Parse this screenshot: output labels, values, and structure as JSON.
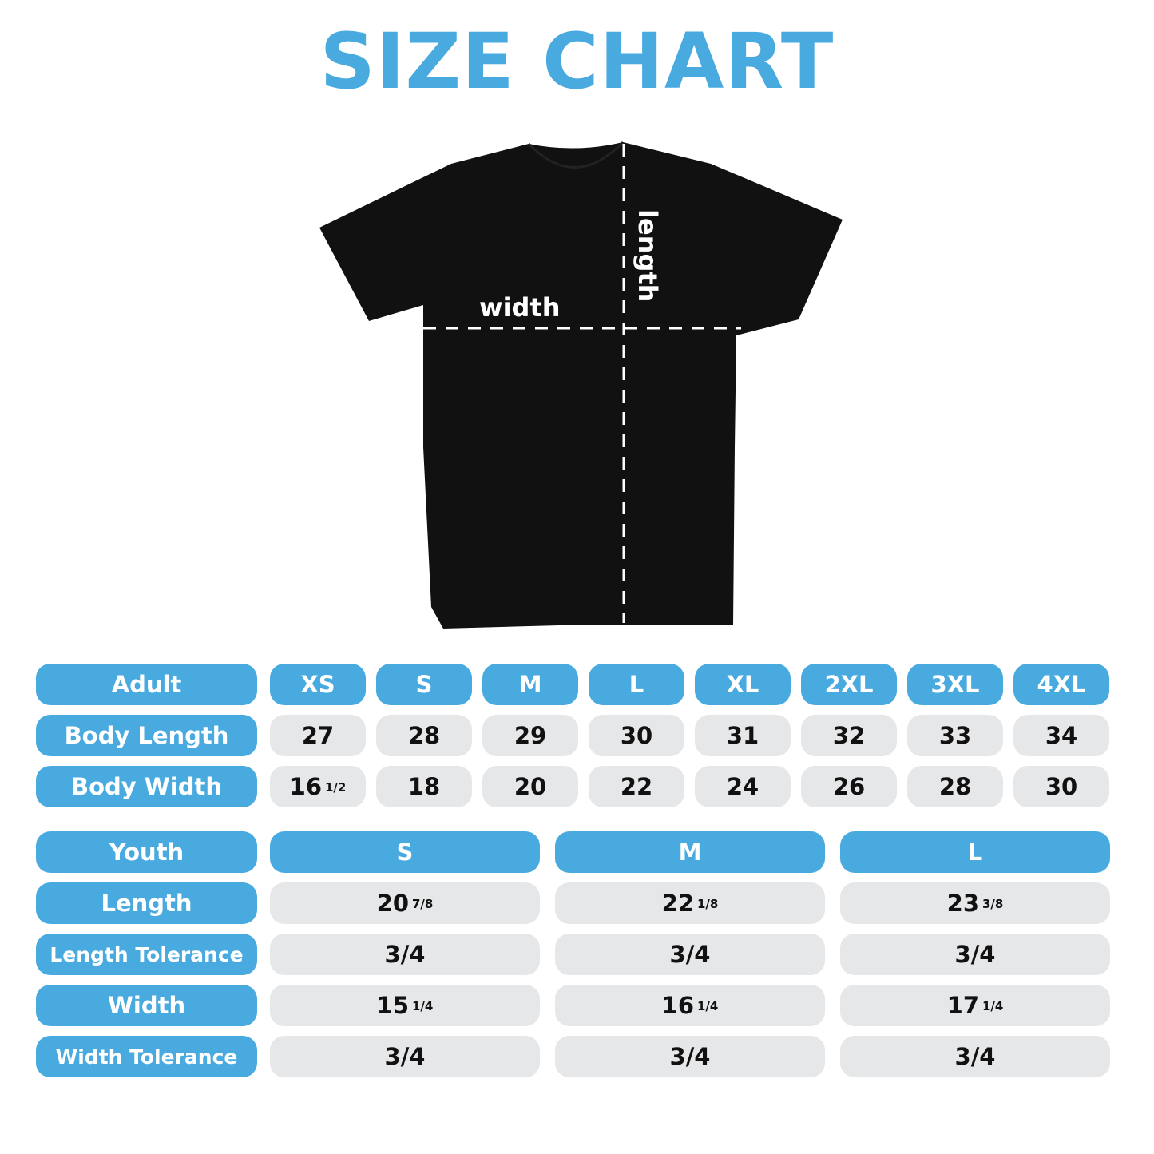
{
  "title": "SIZE CHART",
  "colors": {
    "accent": "#48aadf",
    "cell_bg": "#e6e7e9",
    "shirt": "#111111"
  },
  "diagram": {
    "width_label": "width",
    "length_label": "length"
  },
  "adult": {
    "header": "Adult",
    "sizes": [
      "XS",
      "S",
      "M",
      "L",
      "XL",
      "2XL",
      "3XL",
      "4XL"
    ],
    "rows": [
      {
        "label": "Body Length",
        "values": [
          {
            "whole": "27"
          },
          {
            "whole": "28"
          },
          {
            "whole": "29"
          },
          {
            "whole": "30"
          },
          {
            "whole": "31"
          },
          {
            "whole": "32"
          },
          {
            "whole": "33"
          },
          {
            "whole": "34"
          }
        ]
      },
      {
        "label": "Body Width",
        "values": [
          {
            "whole": "16",
            "frac": "1/2"
          },
          {
            "whole": "18"
          },
          {
            "whole": "20"
          },
          {
            "whole": "22"
          },
          {
            "whole": "24"
          },
          {
            "whole": "26"
          },
          {
            "whole": "28"
          },
          {
            "whole": "30"
          }
        ]
      }
    ]
  },
  "youth": {
    "header": "Youth",
    "sizes": [
      "S",
      "M",
      "L"
    ],
    "rows": [
      {
        "label": "Length",
        "values": [
          {
            "whole": "20",
            "frac": "7/8"
          },
          {
            "whole": "22",
            "frac": "1/8"
          },
          {
            "whole": "23",
            "frac": "3/8"
          }
        ]
      },
      {
        "label": "Length Tolerance",
        "values": [
          {
            "whole": "3/4"
          },
          {
            "whole": "3/4"
          },
          {
            "whole": "3/4"
          }
        ]
      },
      {
        "label": "Width",
        "values": [
          {
            "whole": "15",
            "frac": "1/4"
          },
          {
            "whole": "16",
            "frac": "1/4"
          },
          {
            "whole": "17",
            "frac": "1/4"
          }
        ]
      },
      {
        "label": "Width Tolerance",
        "values": [
          {
            "whole": "3/4"
          },
          {
            "whole": "3/4"
          },
          {
            "whole": "3/4"
          }
        ]
      }
    ]
  }
}
